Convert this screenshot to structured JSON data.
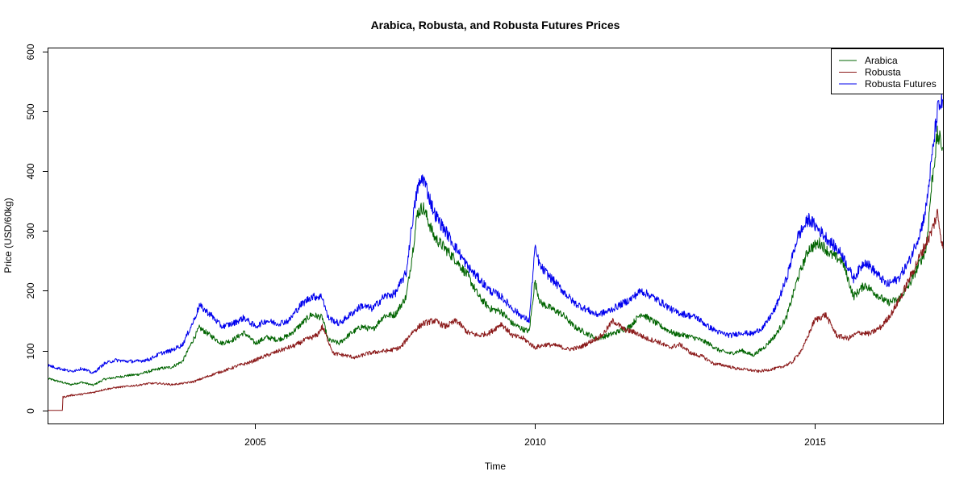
{
  "chart_data": {
    "type": "line",
    "title": "Arabica, Robusta, and Robusta Futures Prices",
    "xlabel": "Time",
    "ylabel": "Price (USD/60kg)",
    "xlim": [
      2001.3,
      2017.3
    ],
    "ylim": [
      -22,
      605
    ],
    "x_ticks": [
      2005,
      2010,
      2015
    ],
    "x_tick_labels": [
      "2005",
      "2010",
      "2015"
    ],
    "y_ticks": [
      0,
      100,
      200,
      300,
      400,
      500,
      600
    ],
    "y_tick_labels": [
      "0",
      "100",
      "200",
      "300",
      "400",
      "500",
      "600"
    ],
    "grid": false,
    "legend_position": "top-right",
    "series": [
      {
        "name": "Arabica",
        "color": "#006400",
        "x": [
          2001.3,
          2001.5,
          2001.7,
          2001.9,
          2002.1,
          2002.3,
          2002.5,
          2002.7,
          2002.9,
          2003.1,
          2003.3,
          2003.5,
          2003.7,
          2003.9,
          2004.0,
          2004.2,
          2004.4,
          2004.6,
          2004.8,
          2005.0,
          2005.2,
          2005.4,
          2005.6,
          2005.8,
          2006.0,
          2006.2,
          2006.3,
          2006.5,
          2006.7,
          2006.9,
          2007.1,
          2007.3,
          2007.5,
          2007.7,
          2007.8,
          2007.9,
          2008.0,
          2008.2,
          2008.4,
          2008.6,
          2008.8,
          2009.0,
          2009.2,
          2009.4,
          2009.6,
          2009.8,
          2009.9,
          2010.0,
          2010.1,
          2010.3,
          2010.5,
          2010.7,
          2010.9,
          2011.1,
          2011.3,
          2011.5,
          2011.7,
          2011.9,
          2012.1,
          2012.3,
          2012.5,
          2012.7,
          2012.9,
          2013.1,
          2013.3,
          2013.5,
          2013.7,
          2013.9,
          2014.1,
          2014.3,
          2014.5,
          2014.7,
          2014.9,
          2015.1,
          2015.3,
          2015.5,
          2015.7,
          2015.9,
          2016.1,
          2016.3,
          2016.5,
          2016.7,
          2016.9,
          2017.0,
          2017.1,
          2017.2,
          2017.3
        ],
        "values": [
          53,
          48,
          43,
          47,
          42,
          52,
          55,
          58,
          60,
          65,
          70,
          72,
          82,
          120,
          138,
          125,
          112,
          118,
          130,
          112,
          122,
          118,
          125,
          142,
          160,
          155,
          118,
          112,
          128,
          140,
          135,
          158,
          160,
          190,
          255,
          330,
          340,
          290,
          270,
          250,
          225,
          190,
          170,
          165,
          145,
          135,
          132,
          215,
          180,
          170,
          160,
          140,
          130,
          120,
          125,
          132,
          140,
          162,
          150,
          138,
          128,
          125,
          120,
          112,
          100,
          95,
          100,
          92,
          105,
          125,
          155,
          220,
          270,
          280,
          260,
          250,
          190,
          210,
          195,
          180,
          185,
          210,
          250,
          270,
          380,
          460,
          440
        ]
      },
      {
        "name": "Robusta",
        "color": "#8B1A1A",
        "x": [
          2001.3,
          2001.55,
          2001.56,
          2001.7,
          2001.9,
          2002.1,
          2002.3,
          2002.5,
          2002.7,
          2002.9,
          2003.1,
          2003.3,
          2003.5,
          2003.7,
          2003.9,
          2004.1,
          2004.3,
          2004.5,
          2004.7,
          2004.9,
          2005.1,
          2005.3,
          2005.5,
          2005.7,
          2005.9,
          2006.1,
          2006.2,
          2006.4,
          2006.6,
          2006.8,
          2007.0,
          2007.2,
          2007.4,
          2007.6,
          2007.8,
          2008.0,
          2008.2,
          2008.4,
          2008.6,
          2008.8,
          2009.0,
          2009.2,
          2009.4,
          2009.6,
          2009.8,
          2010.0,
          2010.2,
          2010.4,
          2010.6,
          2010.8,
          2011.0,
          2011.2,
          2011.4,
          2011.6,
          2011.8,
          2012.0,
          2012.2,
          2012.4,
          2012.6,
          2012.8,
          2013.0,
          2013.2,
          2013.4,
          2013.6,
          2013.8,
          2014.0,
          2014.2,
          2014.4,
          2014.6,
          2014.8,
          2015.0,
          2015.2,
          2015.4,
          2015.6,
          2015.8,
          2016.0,
          2016.2,
          2016.4,
          2016.6,
          2016.8,
          2016.9,
          2017.0,
          2017.1,
          2017.2,
          2017.3
        ],
        "values": [
          0,
          0,
          22,
          25,
          27,
          30,
          35,
          38,
          40,
          42,
          45,
          45,
          43,
          45,
          48,
          55,
          62,
          68,
          75,
          80,
          88,
          95,
          102,
          108,
          118,
          125,
          140,
          95,
          92,
          88,
          95,
          98,
          100,
          105,
          130,
          145,
          150,
          140,
          150,
          130,
          125,
          130,
          145,
          125,
          120,
          105,
          110,
          108,
          102,
          105,
          115,
          125,
          150,
          135,
          130,
          120,
          115,
          105,
          110,
          95,
          90,
          78,
          75,
          70,
          68,
          65,
          68,
          72,
          80,
          105,
          150,
          160,
          125,
          120,
          130,
          128,
          140,
          165,
          200,
          240,
          260,
          280,
          300,
          330,
          270
        ]
      },
      {
        "name": "Robusta Futures",
        "color": "#0000EE",
        "x": [
          2001.3,
          2001.5,
          2001.7,
          2001.9,
          2002.1,
          2002.3,
          2002.5,
          2002.7,
          2002.9,
          2003.1,
          2003.3,
          2003.5,
          2003.7,
          2003.9,
          2004.0,
          2004.2,
          2004.4,
          2004.6,
          2004.8,
          2005.0,
          2005.2,
          2005.4,
          2005.6,
          2005.8,
          2006.0,
          2006.2,
          2006.3,
          2006.5,
          2006.7,
          2006.9,
          2007.1,
          2007.3,
          2007.5,
          2007.7,
          2007.8,
          2007.9,
          2008.0,
          2008.2,
          2008.4,
          2008.6,
          2008.8,
          2009.0,
          2009.2,
          2009.4,
          2009.6,
          2009.8,
          2009.9,
          2010.0,
          2010.1,
          2010.3,
          2010.5,
          2010.7,
          2010.9,
          2011.1,
          2011.3,
          2011.5,
          2011.7,
          2011.9,
          2012.1,
          2012.3,
          2012.5,
          2012.7,
          2012.9,
          2013.1,
          2013.3,
          2013.5,
          2013.7,
          2013.9,
          2014.1,
          2014.3,
          2014.5,
          2014.7,
          2014.9,
          2015.1,
          2015.3,
          2015.5,
          2015.7,
          2015.9,
          2016.1,
          2016.3,
          2016.5,
          2016.7,
          2016.9,
          2017.0,
          2017.1,
          2017.2,
          2017.3
        ],
        "values": [
          75,
          70,
          65,
          70,
          62,
          78,
          84,
          82,
          82,
          85,
          95,
          100,
          110,
          150,
          175,
          160,
          140,
          145,
          155,
          140,
          150,
          145,
          150,
          175,
          190,
          190,
          155,
          145,
          160,
          175,
          170,
          190,
          195,
          230,
          310,
          370,
          390,
          330,
          300,
          270,
          240,
          220,
          200,
          190,
          170,
          155,
          150,
          270,
          240,
          220,
          200,
          180,
          170,
          160,
          165,
          175,
          185,
          200,
          190,
          178,
          165,
          160,
          155,
          140,
          130,
          125,
          130,
          128,
          140,
          170,
          220,
          290,
          320,
          300,
          280,
          260,
          220,
          250,
          230,
          210,
          220,
          250,
          300,
          340,
          420,
          500,
          520
        ]
      }
    ]
  }
}
